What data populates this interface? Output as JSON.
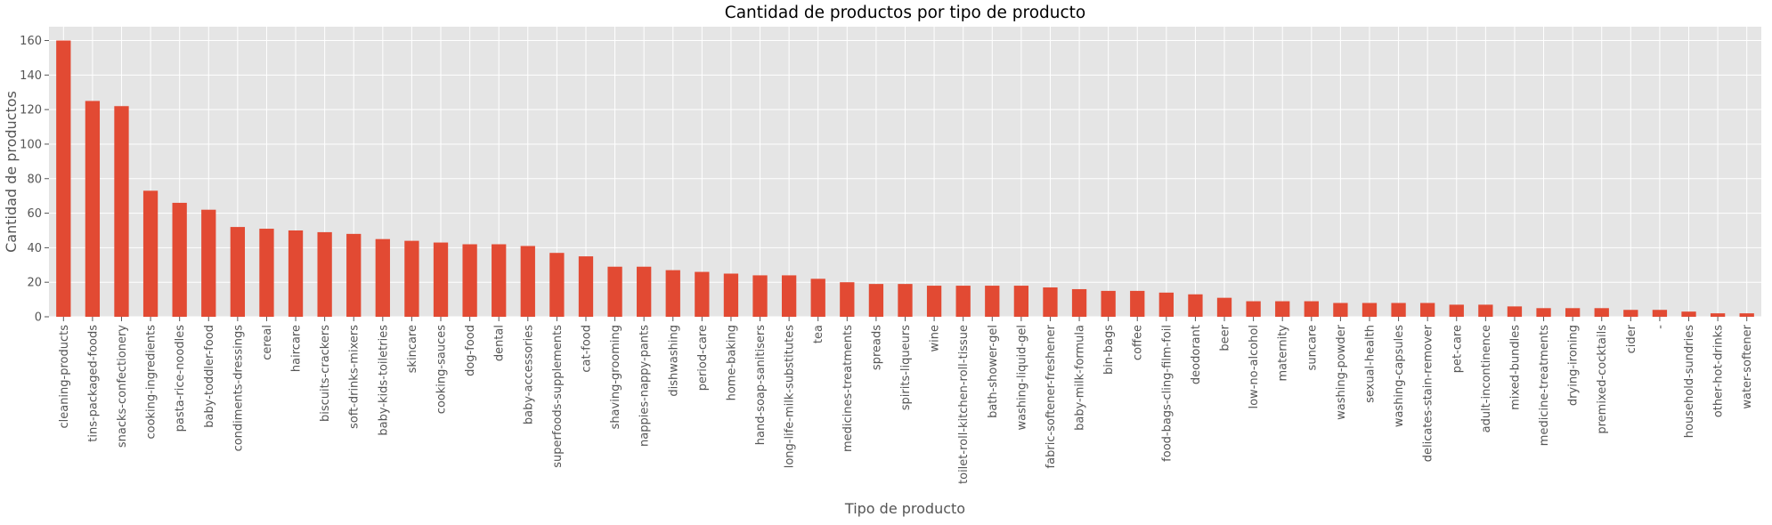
{
  "chart_data": {
    "type": "bar",
    "title": "Cantidad de productos por tipo de producto",
    "xlabel": "Tipo de producto",
    "ylabel": "Cantidad de productos",
    "ylim": [
      0,
      168
    ],
    "yticks": [
      0,
      20,
      40,
      60,
      80,
      100,
      120,
      140,
      160
    ],
    "grid": true,
    "bar_color": "#E24A33",
    "background": "#E5E5E5",
    "categories": [
      "cleaning-products",
      "tins-packaged-foods",
      "snacks-confectionery",
      "cooking-ingredients",
      "pasta-rice-noodles",
      "baby-toddler-food",
      "condiments-dressings",
      "cereal",
      "haircare",
      "biscuits-crackers",
      "soft-drinks-mixers",
      "baby-kids-toiletries",
      "skincare",
      "cooking-sauces",
      "dog-food",
      "dental",
      "baby-accessories",
      "superfoods-supplements",
      "cat-food",
      "shaving-grooming",
      "nappies-nappy-pants",
      "dishwashing",
      "period-care",
      "home-baking",
      "hand-soap-sanitisers",
      "long-life-milk-substitutes",
      "tea",
      "medicines-treatments",
      "spreads",
      "spirits-liqueurs",
      "wine",
      "toilet-roll-kitchen-roll-tissue",
      "bath-shower-gel",
      "washing-liquid-gel",
      "fabric-softener-freshener",
      "baby-milk-formula",
      "bin-bags",
      "coffee",
      "food-bags-cling-film-foil",
      "deodorant",
      "beer",
      "low-no-alcohol",
      "maternity",
      "suncare",
      "washing-powder",
      "sexual-health",
      "washing-capsules",
      "delicates-stain-remover",
      "pet-care",
      "adult-incontinence",
      "mixed-bundles",
      "medicine-treatments",
      "drying-ironing",
      "premixed-cocktails",
      "cider",
      "-",
      "household-sundries",
      "other-hot-drinks",
      "water-softener"
    ],
    "values": [
      160,
      125,
      122,
      73,
      66,
      62,
      52,
      51,
      50,
      49,
      48,
      45,
      44,
      43,
      42,
      42,
      41,
      37,
      35,
      29,
      29,
      27,
      26,
      25,
      24,
      24,
      22,
      20,
      19,
      19,
      18,
      18,
      18,
      18,
      17,
      16,
      15,
      15,
      14,
      13,
      11,
      9,
      9,
      9,
      8,
      8,
      8,
      8,
      7,
      7,
      6,
      5,
      5,
      5,
      4,
      4,
      3,
      2,
      2
    ]
  }
}
